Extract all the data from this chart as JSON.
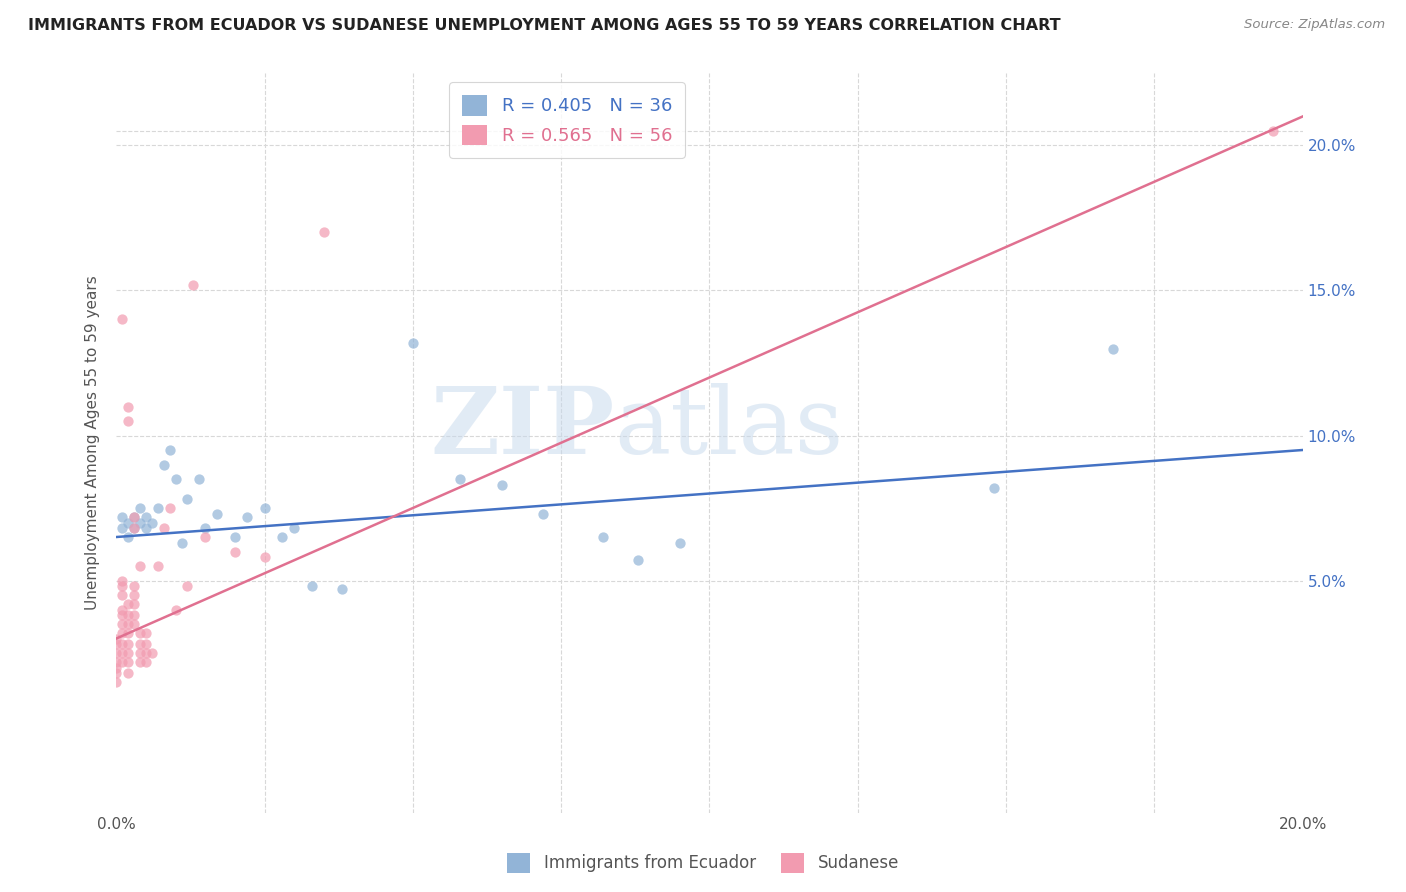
{
  "title": "IMMIGRANTS FROM ECUADOR VS SUDANESE UNEMPLOYMENT AMONG AGES 55 TO 59 YEARS CORRELATION CHART",
  "source": "Source: ZipAtlas.com",
  "ylabel": "Unemployment Among Ages 55 to 59 years",
  "xlim": [
    0,
    0.2
  ],
  "ylim": [
    -0.03,
    0.225
  ],
  "y_ticks": [
    0.05,
    0.1,
    0.15,
    0.2
  ],
  "y_tick_labels": [
    "5.0%",
    "10.0%",
    "15.0%",
    "20.0%"
  ],
  "watermark_zip": "ZIP",
  "watermark_atlas": "atlas",
  "blue_color": "#92b4d7",
  "pink_color": "#f29bb0",
  "blue_line_color": "#4472c4",
  "pink_line_color": "#e07090",
  "ecuador_points": [
    [
      0.001,
      0.072
    ],
    [
      0.001,
      0.068
    ],
    [
      0.002,
      0.07
    ],
    [
      0.002,
      0.065
    ],
    [
      0.003,
      0.068
    ],
    [
      0.003,
      0.072
    ],
    [
      0.004,
      0.07
    ],
    [
      0.004,
      0.075
    ],
    [
      0.005,
      0.072
    ],
    [
      0.005,
      0.068
    ],
    [
      0.006,
      0.07
    ],
    [
      0.007,
      0.075
    ],
    [
      0.008,
      0.09
    ],
    [
      0.009,
      0.095
    ],
    [
      0.01,
      0.085
    ],
    [
      0.011,
      0.063
    ],
    [
      0.012,
      0.078
    ],
    [
      0.014,
      0.085
    ],
    [
      0.015,
      0.068
    ],
    [
      0.017,
      0.073
    ],
    [
      0.02,
      0.065
    ],
    [
      0.022,
      0.072
    ],
    [
      0.025,
      0.075
    ],
    [
      0.028,
      0.065
    ],
    [
      0.03,
      0.068
    ],
    [
      0.033,
      0.048
    ],
    [
      0.038,
      0.047
    ],
    [
      0.05,
      0.132
    ],
    [
      0.058,
      0.085
    ],
    [
      0.065,
      0.083
    ],
    [
      0.072,
      0.073
    ],
    [
      0.082,
      0.065
    ],
    [
      0.088,
      0.057
    ],
    [
      0.095,
      0.063
    ],
    [
      0.148,
      0.082
    ],
    [
      0.168,
      0.13
    ]
  ],
  "sudanese_points": [
    [
      0.0,
      0.03
    ],
    [
      0.0,
      0.025
    ],
    [
      0.0,
      0.028
    ],
    [
      0.0,
      0.022
    ],
    [
      0.0,
      0.018
    ],
    [
      0.0,
      0.015
    ],
    [
      0.0,
      0.02
    ],
    [
      0.001,
      0.048
    ],
    [
      0.001,
      0.045
    ],
    [
      0.001,
      0.05
    ],
    [
      0.001,
      0.04
    ],
    [
      0.001,
      0.14
    ],
    [
      0.001,
      0.038
    ],
    [
      0.001,
      0.035
    ],
    [
      0.001,
      0.032
    ],
    [
      0.001,
      0.028
    ],
    [
      0.001,
      0.025
    ],
    [
      0.001,
      0.022
    ],
    [
      0.002,
      0.042
    ],
    [
      0.002,
      0.038
    ],
    [
      0.002,
      0.035
    ],
    [
      0.002,
      0.032
    ],
    [
      0.002,
      0.028
    ],
    [
      0.002,
      0.025
    ],
    [
      0.002,
      0.022
    ],
    [
      0.002,
      0.018
    ],
    [
      0.002,
      0.105
    ],
    [
      0.002,
      0.11
    ],
    [
      0.003,
      0.048
    ],
    [
      0.003,
      0.045
    ],
    [
      0.003,
      0.042
    ],
    [
      0.003,
      0.038
    ],
    [
      0.003,
      0.035
    ],
    [
      0.003,
      0.068
    ],
    [
      0.003,
      0.072
    ],
    [
      0.004,
      0.032
    ],
    [
      0.004,
      0.028
    ],
    [
      0.004,
      0.025
    ],
    [
      0.004,
      0.022
    ],
    [
      0.004,
      0.055
    ],
    [
      0.005,
      0.032
    ],
    [
      0.005,
      0.028
    ],
    [
      0.005,
      0.025
    ],
    [
      0.005,
      0.022
    ],
    [
      0.006,
      0.025
    ],
    [
      0.007,
      0.055
    ],
    [
      0.008,
      0.068
    ],
    [
      0.009,
      0.075
    ],
    [
      0.01,
      0.04
    ],
    [
      0.012,
      0.048
    ],
    [
      0.013,
      0.152
    ],
    [
      0.015,
      0.065
    ],
    [
      0.02,
      0.06
    ],
    [
      0.025,
      0.058
    ],
    [
      0.035,
      0.17
    ],
    [
      0.195,
      0.205
    ]
  ],
  "background_color": "#ffffff",
  "grid_color": "#d8d8d8",
  "title_color": "#222222",
  "source_color": "#888888"
}
